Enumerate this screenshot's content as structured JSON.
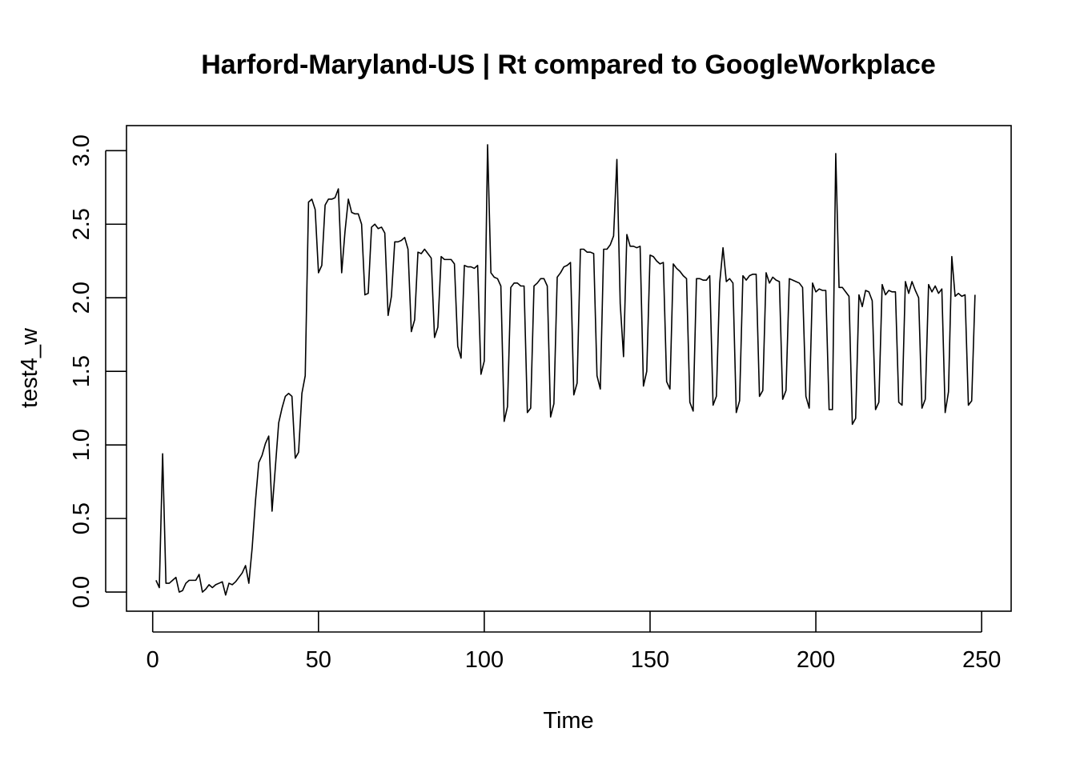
{
  "chart_data": {
    "type": "line",
    "title": "Harford-Maryland-US | Rt compared to GoogleWorkplace",
    "xlabel": "Time",
    "ylabel": "test4_w",
    "xlim": [
      -7.9,
      258.9
    ],
    "ylim": [
      -0.13,
      3.17
    ],
    "x_ticks": [
      0,
      50,
      100,
      150,
      200,
      250
    ],
    "y_ticks": [
      0.0,
      0.5,
      1.0,
      1.5,
      2.0,
      2.5,
      3.0
    ],
    "x_tick_labels": [
      "0",
      "50",
      "100",
      "150",
      "200",
      "250"
    ],
    "y_tick_labels": [
      "0.0",
      "0.5",
      "1.0",
      "1.5",
      "2.0",
      "2.5",
      "3.0"
    ],
    "grid": false,
    "series": [
      {
        "x_start": 1,
        "x_step": 1,
        "values": [
          0.08,
          0.03,
          0.94,
          0.06,
          0.06,
          0.08,
          0.1,
          0.0,
          0.01,
          0.06,
          0.08,
          0.08,
          0.08,
          0.12,
          0.0,
          0.02,
          0.05,
          0.03,
          0.05,
          0.06,
          0.07,
          -0.02,
          0.06,
          0.05,
          0.07,
          0.1,
          0.13,
          0.18,
          0.06,
          0.3,
          0.62,
          0.88,
          0.93,
          1.01,
          1.06,
          0.55,
          0.85,
          1.15,
          1.25,
          1.33,
          1.35,
          1.33,
          0.91,
          0.95,
          1.35,
          1.47,
          2.65,
          2.67,
          2.6,
          2.17,
          2.22,
          2.63,
          2.67,
          2.67,
          2.68,
          2.74,
          2.17,
          2.45,
          2.67,
          2.58,
          2.57,
          2.57,
          2.5,
          2.02,
          2.03,
          2.48,
          2.5,
          2.47,
          2.48,
          2.44,
          1.88,
          2.01,
          2.38,
          2.38,
          2.39,
          2.41,
          2.33,
          1.77,
          1.85,
          2.31,
          2.3,
          2.33,
          2.3,
          2.27,
          1.73,
          1.8,
          2.28,
          2.26,
          2.26,
          2.26,
          2.23,
          1.67,
          1.59,
          2.22,
          2.21,
          2.21,
          2.2,
          2.22,
          1.48,
          1.57,
          3.04,
          2.17,
          2.14,
          2.13,
          2.08,
          1.16,
          1.26,
          2.07,
          2.1,
          2.1,
          2.08,
          2.08,
          1.22,
          1.25,
          2.08,
          2.1,
          2.13,
          2.13,
          2.08,
          1.19,
          1.28,
          2.14,
          2.17,
          2.21,
          2.22,
          2.24,
          1.34,
          1.42,
          2.33,
          2.33,
          2.31,
          2.31,
          2.3,
          1.47,
          1.38,
          2.33,
          2.33,
          2.36,
          2.42,
          2.94,
          1.96,
          1.6,
          2.43,
          2.35,
          2.35,
          2.34,
          2.35,
          1.4,
          1.5,
          2.29,
          2.28,
          2.25,
          2.23,
          2.24,
          1.43,
          1.38,
          2.23,
          2.2,
          2.18,
          2.15,
          2.13,
          1.29,
          1.23,
          2.13,
          2.13,
          2.12,
          2.12,
          2.15,
          1.27,
          1.33,
          2.1,
          2.34,
          2.11,
          2.13,
          2.1,
          1.22,
          1.3,
          2.15,
          2.12,
          2.15,
          2.16,
          2.16,
          1.33,
          1.37,
          2.17,
          2.1,
          2.14,
          2.12,
          2.11,
          1.31,
          1.37,
          2.13,
          2.12,
          2.11,
          2.1,
          2.07,
          1.33,
          1.25,
          2.1,
          2.04,
          2.06,
          2.05,
          2.05,
          1.24,
          1.24,
          2.98,
          2.07,
          2.07,
          2.04,
          2.01,
          1.14,
          1.18,
          2.02,
          1.94,
          2.05,
          2.04,
          1.98,
          1.24,
          1.29,
          2.09,
          2.02,
          2.05,
          2.04,
          2.04,
          1.29,
          1.27,
          2.11,
          2.03,
          2.11,
          2.05,
          2.0,
          1.25,
          1.31,
          2.09,
          2.04,
          2.08,
          2.03,
          2.06,
          1.22,
          1.36,
          2.28,
          2.01,
          2.03,
          2.01,
          2.02,
          1.27,
          1.3,
          2.02
        ]
      }
    ]
  }
}
